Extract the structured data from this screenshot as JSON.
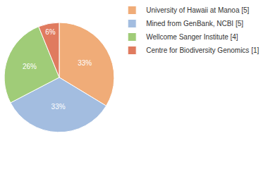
{
  "chart_data": {
    "type": "pie",
    "categories": [
      "University of Hawaii at Manoa [5]",
      "Mined from GenBank, NCBI [5]",
      "Wellcome Sanger Institute [4]",
      "Centre for Biodiversity Genomics [1]"
    ],
    "values": [
      33,
      33,
      26,
      6
    ],
    "value_labels": [
      "33%",
      "33%",
      "26%",
      "6%"
    ],
    "colors": [
      "#f0ac78",
      "#a3bde0",
      "#a0cc78",
      "#e07b5f"
    ],
    "data_labels": true,
    "legend": "top right"
  }
}
